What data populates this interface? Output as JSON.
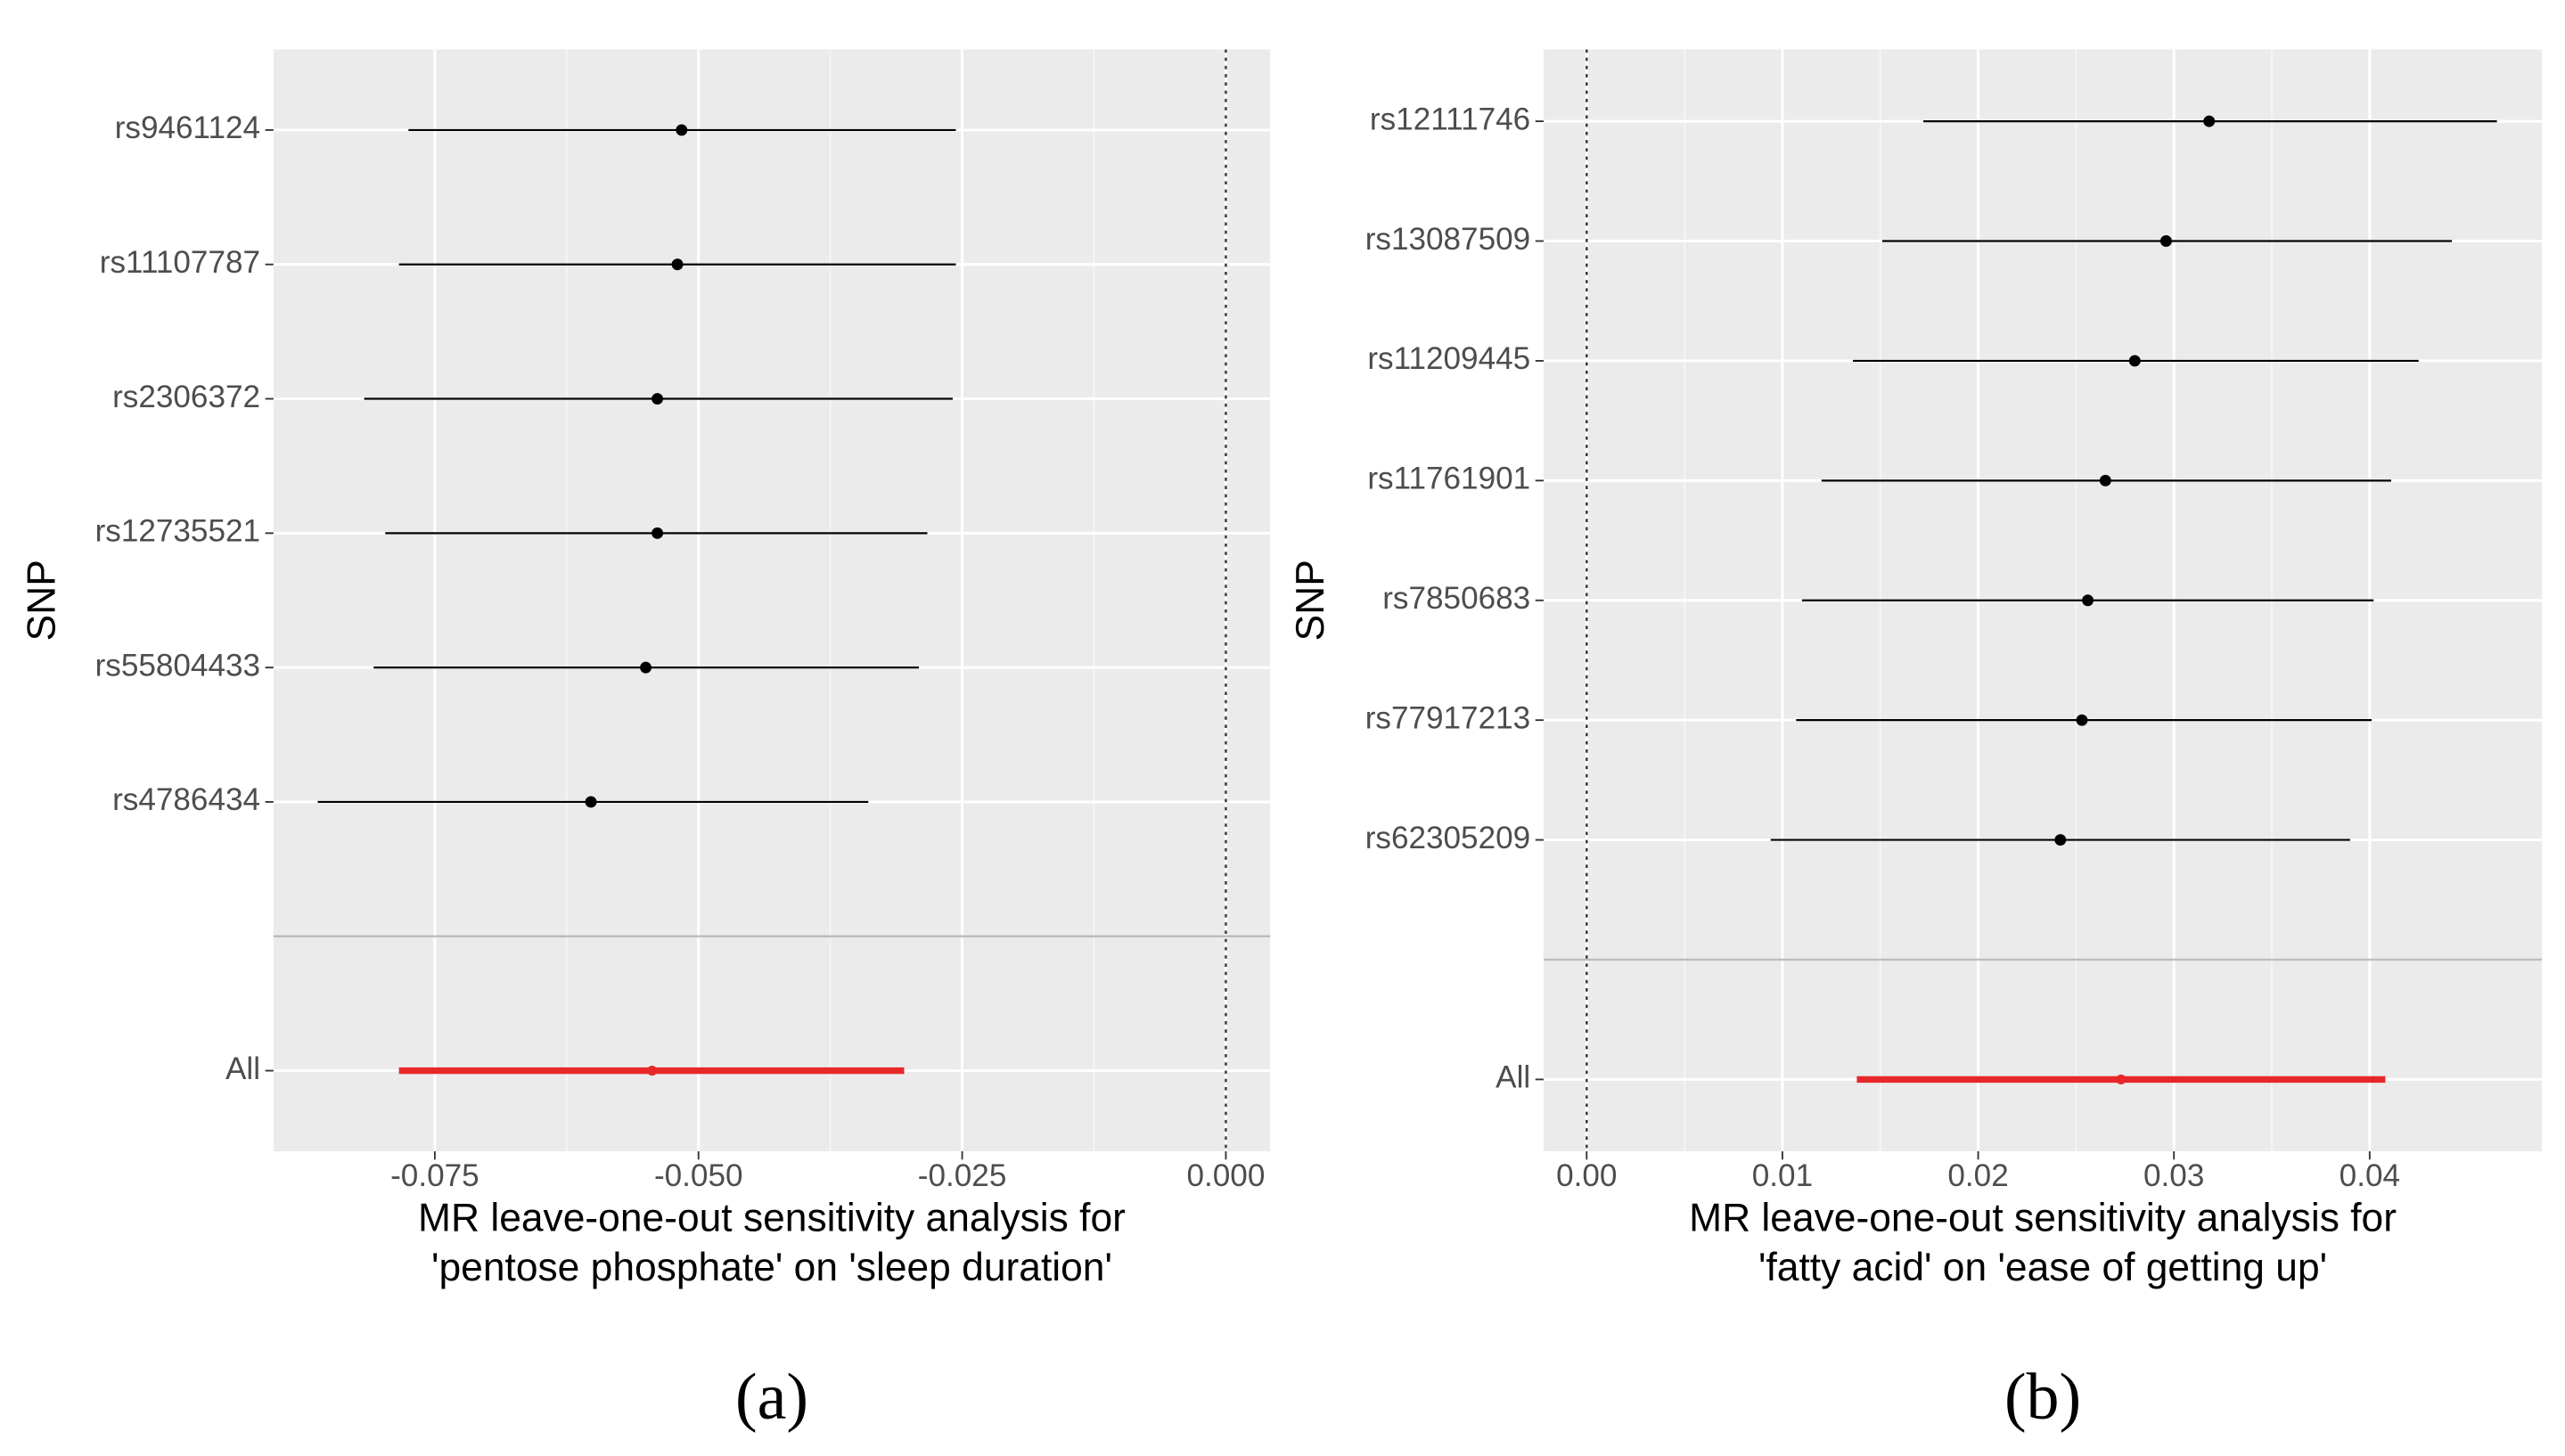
{
  "chart_data": [
    {
      "type": "forest",
      "categories": [
        "rs9461124",
        "rs11107787",
        "rs2306372",
        "rs12735521",
        "rs55804433",
        "rs4786434",
        "All"
      ],
      "values": [
        -0.0516,
        -0.052,
        -0.0539,
        -0.0539,
        -0.055,
        -0.0602,
        -0.0544
      ],
      "ci_low": [
        -0.0775,
        -0.0784,
        -0.0817,
        -0.0797,
        -0.0808,
        -0.0861,
        -0.0784
      ],
      "ci_high": [
        -0.0256,
        -0.0256,
        -0.0259,
        -0.0283,
        -0.0291,
        -0.0339,
        -0.0305
      ],
      "color": "#000000",
      "summary_color": "#e8272a",
      "xlim": [
        -0.0903,
        0.0042
      ],
      "xticks": [
        -0.075,
        {
          "value": -0.05,
          "label": "-0.050"
        },
        -0.025,
        {
          "value": 0,
          "label": "0.000"
        }
      ],
      "reference_line": 0,
      "ylabel": "SNP",
      "xlabel": [
        "MR leave-one-out sensitivity analysis for",
        "'pentose phosphate' on 'sleep duration'"
      ],
      "panel_label": "(a)",
      "grid": true
    },
    {
      "type": "forest",
      "categories": [
        "rs12111746",
        "rs13087509",
        "rs11209445",
        "rs11761901",
        "rs7850683",
        "rs77917213",
        "rs62305209",
        "All"
      ],
      "values": [
        0.0318,
        0.0296,
        0.028,
        0.0265,
        0.0256,
        0.0253,
        0.0242,
        0.0273
      ],
      "ci_low": [
        0.0172,
        0.0151,
        0.0136,
        0.012,
        0.011,
        0.0107,
        0.0094,
        0.0138
      ],
      "ci_high": [
        0.0465,
        0.0442,
        0.0425,
        0.0411,
        0.0402,
        0.0401,
        0.039,
        0.0408
      ],
      "color": "#000000",
      "summary_color": "#e8272a",
      "xlim": [
        -0.0022,
        0.0488
      ],
      "xticks": [
        {
          "value": 0,
          "label": "0.00"
        },
        0.01,
        0.02,
        0.03,
        0.04
      ],
      "reference_line": 0,
      "ylabel": "SNP",
      "xlabel": [
        "MR leave-one-out sensitivity analysis for",
        "'fatty acid' on 'ease of getting up'"
      ],
      "panel_label": "(b)",
      "grid": true
    }
  ]
}
